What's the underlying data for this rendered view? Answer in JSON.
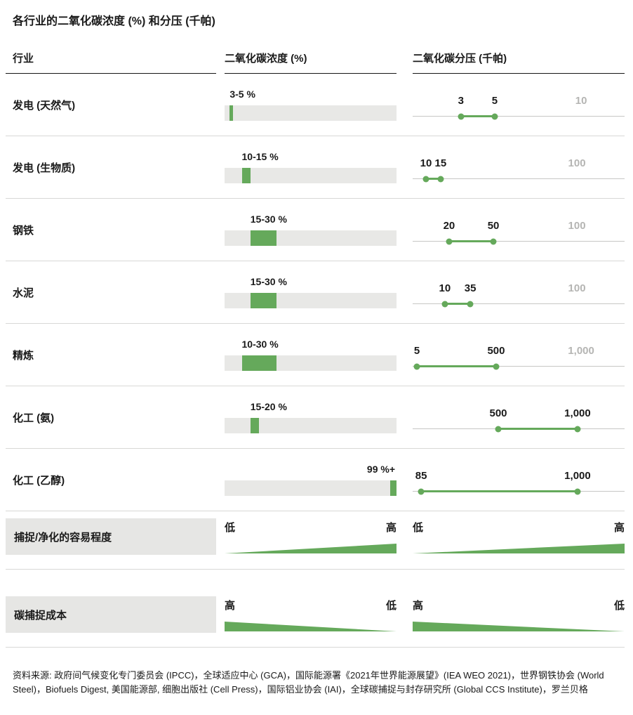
{
  "title": "各行业的二氧化碳浓度 (%) 和分压 (千帕)",
  "columns": {
    "industry": "行业",
    "concentration": "二氧化碳浓度 (%)",
    "pressure": "二氧化碳分压 (千帕)"
  },
  "colors": {
    "green": "#65a95b",
    "bar_bg": "#e8e8e6",
    "ref_gray": "#b5b5b3",
    "separator": "#d8d8d6"
  },
  "chart_data": {
    "type": "table",
    "concentration_axis": {
      "min": 0,
      "max": 100,
      "unit": "%"
    },
    "pressure_unit": "千帕",
    "rows": [
      {
        "industry": "发电 (天然气)",
        "conc_label": "3-5 %",
        "conc_lo": 3,
        "conc_hi": 5,
        "conc_label_align": "left",
        "pressure_points": [
          {
            "label": "3",
            "value": 3,
            "pos": 22.8
          },
          {
            "label": "5",
            "value": 5,
            "pos": 38.7
          }
        ],
        "pressure_ref": {
          "label": "10",
          "value": 10,
          "pos": 79.5
        }
      },
      {
        "industry": "发电 (生物质)",
        "conc_label": "10-15 %",
        "conc_lo": 10,
        "conc_hi": 15,
        "conc_label_align": "left",
        "pressure_points": [
          {
            "label": "10",
            "value": 10,
            "pos": 6.3
          },
          {
            "label": "15",
            "value": 15,
            "pos": 13.2
          }
        ],
        "pressure_ref": {
          "label": "100",
          "value": 100,
          "pos": 77.5
        }
      },
      {
        "industry": "钢铁",
        "conc_label": "15-30 %",
        "conc_lo": 15,
        "conc_hi": 30,
        "conc_label_align": "left",
        "pressure_points": [
          {
            "label": "20",
            "value": 20,
            "pos": 17.2
          },
          {
            "label": "50",
            "value": 50,
            "pos": 38.1
          }
        ],
        "pressure_ref": {
          "label": "100",
          "value": 100,
          "pos": 77.5
        }
      },
      {
        "industry": "水泥",
        "conc_label": "15-30 %",
        "conc_lo": 15,
        "conc_hi": 30,
        "conc_label_align": "left",
        "pressure_points": [
          {
            "label": "10",
            "value": 10,
            "pos": 15.2
          },
          {
            "label": "35",
            "value": 35,
            "pos": 27.2
          }
        ],
        "pressure_ref": {
          "label": "100",
          "value": 100,
          "pos": 77.5
        }
      },
      {
        "industry": "精炼",
        "conc_label": "10-30 %",
        "conc_lo": 10,
        "conc_hi": 30,
        "conc_label_align": "left",
        "pressure_points": [
          {
            "label": "5",
            "value": 5,
            "pos": 2.0
          },
          {
            "label": "500",
            "value": 500,
            "pos": 39.4
          }
        ],
        "pressure_ref": {
          "label": "1,000",
          "value": 1000,
          "pos": 79.5
        }
      },
      {
        "industry": "化工 (氨)",
        "conc_label": "15-20 %",
        "conc_lo": 15,
        "conc_hi": 20,
        "conc_label_align": "left",
        "pressure_points": [
          {
            "label": "500",
            "value": 500,
            "pos": 40.4
          },
          {
            "label": "1,000",
            "value": 1000,
            "pos": 77.8
          }
        ],
        "pressure_ref": null
      },
      {
        "industry": "化工 (乙醇)",
        "conc_label": "99 %+",
        "conc_lo": 99,
        "conc_hi": 100,
        "conc_label_align": "right",
        "pressure_points": [
          {
            "label": "85",
            "value": 85,
            "pos": 4.0
          },
          {
            "label": "1,000",
            "value": 1000,
            "pos": 77.8
          }
        ],
        "pressure_ref": null
      }
    ],
    "summary_rows": [
      {
        "label": "捕捉/净化的容易程度",
        "left_text": "低",
        "right_text": "高",
        "direction": "rising"
      },
      {
        "label": "碳捕捉成本",
        "left_text": "高",
        "right_text": "低",
        "direction": "falling"
      }
    ]
  },
  "source": "资料来源: 政府间气候变化专门委员会 (IPCC)，全球适应中心 (GCA)，国际能源署《2021年世界能源展望》(IEA WEO 2021)，世界钢铁协会 (World Steel)，Biofuels Digest, 美国能源部, 细胞出版社 (Cell Press)，国际铝业协会 (IAI)，全球碳捕捉与封存研究所 (Global CCS Institute)，罗兰贝格"
}
